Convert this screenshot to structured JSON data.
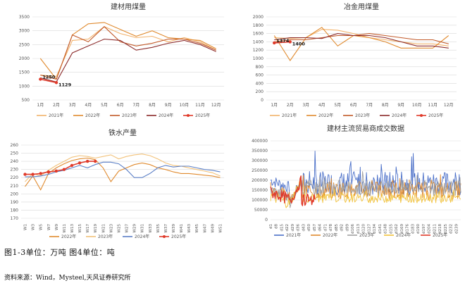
{
  "caption": "图1-3单位：万吨 图4单位：吨",
  "source": "资料来源：Wind，Mysteel,天风证券研究所",
  "chart_data": [
    {
      "type": "line",
      "title": "建材用煤量",
      "categories": [
        "1月",
        "2月",
        "3月",
        "4月",
        "5月",
        "6月",
        "7月",
        "8月",
        "9月",
        "10月",
        "11月",
        "12月"
      ],
      "ylim": [
        500,
        3500
      ],
      "yticks": [
        500,
        1000,
        1500,
        2000,
        2500,
        3000,
        3500
      ],
      "grid": true,
      "legend": "bottom",
      "series": [
        {
          "name": "2021年",
          "color": "#f2b26b",
          "values": [
            1400,
            1350,
            2650,
            2700,
            3150,
            2900,
            2750,
            2800,
            2600,
            2750,
            2600,
            2300
          ]
        },
        {
          "name": "2022年",
          "color": "#e08a2e",
          "values": [
            2000,
            1250,
            2850,
            3250,
            3300,
            3050,
            2800,
            3000,
            2750,
            2700,
            2650,
            2350
          ]
        },
        {
          "name": "2023年",
          "color": "#c25a2a",
          "values": [
            1400,
            1250,
            2850,
            2600,
            3150,
            2600,
            2450,
            2550,
            2700,
            2700,
            2550,
            2300
          ]
        },
        {
          "name": "2024年",
          "color": "#8b2a2a",
          "values": [
            1300,
            1150,
            2200,
            2450,
            2700,
            2650,
            2300,
            2400,
            2550,
            2650,
            2500,
            2250
          ]
        },
        {
          "name": "2025年",
          "color": "#e03a2a",
          "values": [
            1250,
            1129,
            null,
            null,
            null,
            null,
            null,
            null,
            null,
            null,
            null,
            null
          ]
        }
      ],
      "data_labels": [
        {
          "series": "2025年",
          "index": 0,
          "text": "1250"
        },
        {
          "series": "2025年",
          "index": 1,
          "text": "1129"
        }
      ]
    },
    {
      "type": "line",
      "title": "冶金用煤量",
      "categories": [
        "1月",
        "2月",
        "3月",
        "4月",
        "5月",
        "6月",
        "7月",
        "8月",
        "9月",
        "10月",
        "11月",
        "12月"
      ],
      "ylim": [
        0,
        2000
      ],
      "yticks": [
        0,
        200,
        400,
        600,
        800,
        1000,
        1200,
        1400,
        1600,
        1800,
        2000
      ],
      "grid": true,
      "legend": "bottom",
      "series": [
        {
          "name": "2021年",
          "color": "#f2b26b",
          "values": [
            1500,
            1480,
            1500,
            1700,
            1680,
            1600,
            1500,
            1450,
            1400,
            1350,
            1350,
            1300
          ]
        },
        {
          "name": "2022年",
          "color": "#e08a2e",
          "values": [
            1550,
            950,
            1500,
            1750,
            1300,
            1550,
            1500,
            1400,
            1250,
            1250,
            1250,
            1550
          ]
        },
        {
          "name": "2023年",
          "color": "#c25a2a",
          "values": [
            1400,
            1450,
            1450,
            1500,
            1550,
            1550,
            1600,
            1550,
            1500,
            1450,
            1450,
            1350
          ]
        },
        {
          "name": "2024年",
          "color": "#8b2a2a",
          "values": [
            1450,
            1500,
            1500,
            1480,
            1600,
            1550,
            1550,
            1500,
            1400,
            1300,
            1300,
            1250
          ]
        },
        {
          "name": "2025年",
          "color": "#e03a2a",
          "values": [
            1374,
            1400,
            null,
            null,
            null,
            null,
            null,
            null,
            null,
            null,
            null,
            null
          ]
        }
      ],
      "data_labels": [
        {
          "series": "2025年",
          "index": 0,
          "text": "1374"
        },
        {
          "series": "2025年",
          "index": 1,
          "text": "1400"
        }
      ]
    },
    {
      "type": "line",
      "title": "铁水产量",
      "categories": [
        "W1",
        "W3",
        "W5",
        "W7",
        "W9",
        "W11",
        "W13",
        "W15",
        "W17",
        "W19",
        "W21",
        "W23",
        "W25",
        "W27",
        "W29",
        "W31",
        "W33",
        "W35",
        "W37",
        "W39",
        "W41",
        "W43",
        "W45",
        "W47",
        "W49",
        "W51"
      ],
      "ylim": [
        170,
        260
      ],
      "yticks": [
        170,
        180,
        190,
        200,
        210,
        220,
        230,
        240,
        250,
        260
      ],
      "grid": true,
      "legend": "bottom",
      "series": [
        {
          "name": "2022年",
          "color": "#e08a2e",
          "values": [
            209,
            222,
            205,
            225,
            232,
            237,
            241,
            243,
            244,
            242,
            232,
            215,
            228,
            232,
            236,
            238,
            236,
            232,
            230,
            227,
            225,
            225,
            224,
            223,
            222,
            220
          ]
        },
        {
          "name": "2023年",
          "color": "#f2c27a",
          "values": [
            215,
            225,
            222,
            229,
            235,
            240,
            245,
            247,
            246,
            244,
            246,
            248,
            243,
            246,
            248,
            249,
            247,
            243,
            238,
            235,
            234,
            232,
            230,
            228,
            226,
            222
          ]
        },
        {
          "name": "2024年",
          "color": "#5b7fc6",
          "values": [
            221,
            221,
            222,
            224,
            227,
            229,
            232,
            235,
            232,
            236,
            239,
            239,
            237,
            230,
            220,
            220,
            225,
            232,
            235,
            233,
            234,
            234,
            232,
            230,
            229,
            227
          ]
        },
        {
          "name": "2025年",
          "color": "#e03a2a",
          "values": [
            224,
            224,
            225,
            227,
            228,
            230,
            235,
            238,
            240,
            240,
            null,
            null,
            null,
            null,
            null,
            null,
            null,
            null,
            null,
            null,
            null,
            null,
            null,
            null,
            null,
            null
          ]
        }
      ]
    },
    {
      "type": "line",
      "title": "建材主流贸易商成交数据",
      "categories": [
        "d1",
        "d8",
        "d15",
        "d22",
        "d29",
        "d36",
        "d43",
        "d50",
        "d57",
        "d64",
        "d71",
        "d78",
        "d85",
        "d92",
        "d99",
        "d106",
        "d113",
        "d120",
        "d127",
        "d134",
        "d141",
        "d148",
        "d155",
        "d162",
        "d169",
        "d176",
        "d183",
        "d190",
        "d197",
        "d204",
        "d211",
        "d218",
        "d225",
        "d232",
        "d239"
      ],
      "ylim": [
        0,
        400000
      ],
      "yticks": [
        0,
        50000,
        100000,
        150000,
        200000,
        250000,
        300000,
        350000,
        400000
      ],
      "grid": true,
      "legend": "bottom",
      "series": [
        {
          "name": "2021年",
          "color": "#4a6fc8"
        },
        {
          "name": "2022年",
          "color": "#e08a2e"
        },
        {
          "name": "2023年",
          "color": "#a0a0a0"
        },
        {
          "name": "2024年",
          "color": "#f2c23a"
        },
        {
          "name": "2025年",
          "color": "#e03a2a"
        }
      ]
    }
  ]
}
